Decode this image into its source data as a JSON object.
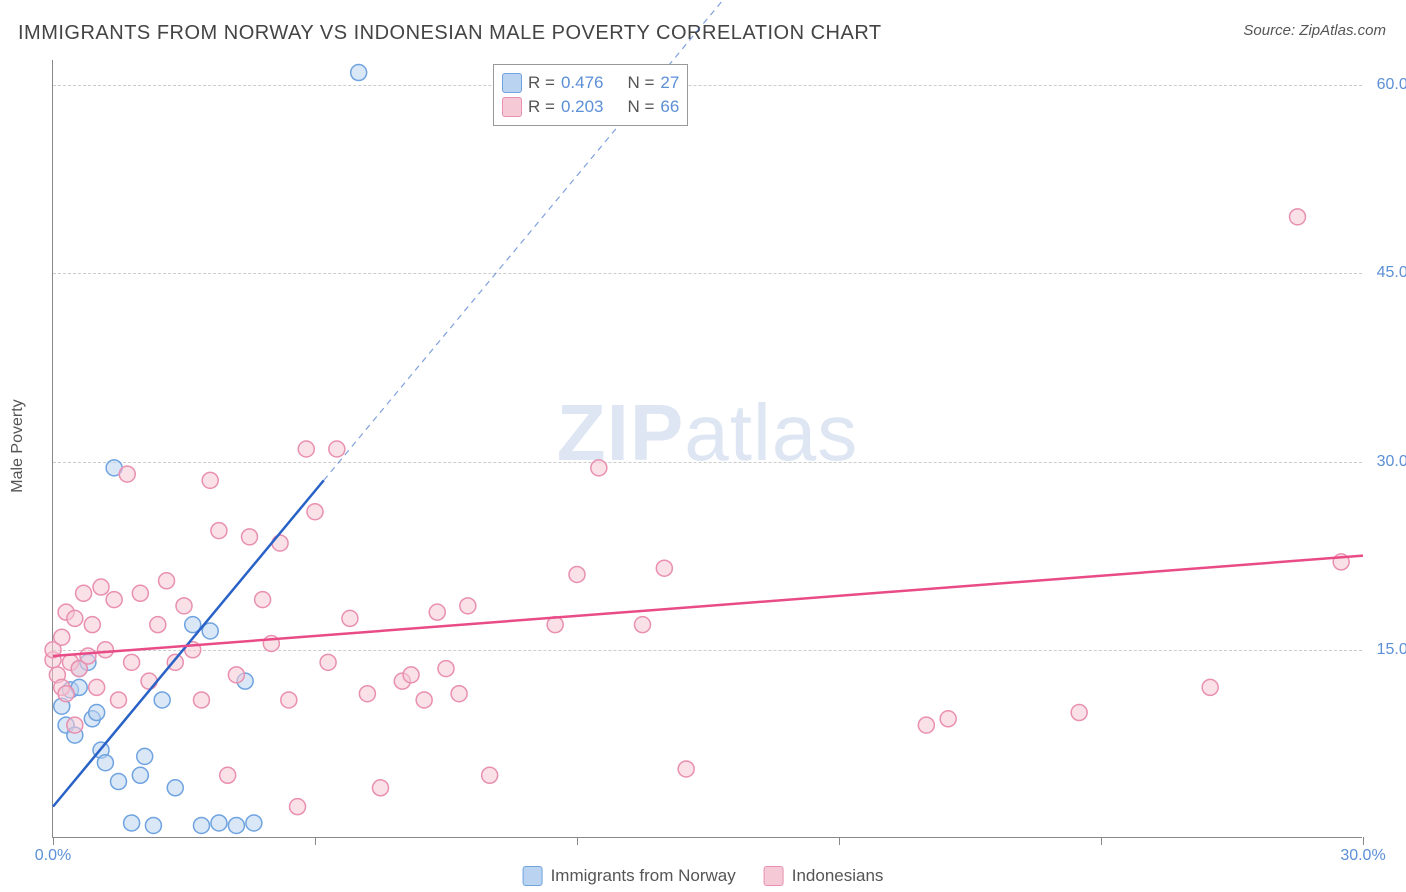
{
  "title": "IMMIGRANTS FROM NORWAY VS INDONESIAN MALE POVERTY CORRELATION CHART",
  "source_label": "Source:",
  "source_value": "ZipAtlas.com",
  "y_axis_title": "Male Poverty",
  "watermark_a": "ZIP",
  "watermark_b": "atlas",
  "chart": {
    "type": "scatter",
    "xlim": [
      0,
      30
    ],
    "ylim": [
      0,
      62
    ],
    "x_ticks": [
      0,
      6,
      12,
      18,
      24,
      30
    ],
    "x_tick_labels": {
      "0": "0.0%",
      "30": "30.0%"
    },
    "y_gridlines": [
      15,
      30,
      45,
      60
    ],
    "y_tick_labels": {
      "15": "15.0%",
      "30": "30.0%",
      "45": "45.0%",
      "60": "60.0%"
    },
    "background_color": "#ffffff",
    "grid_color": "#cccccc",
    "axis_color": "#888888",
    "tick_label_color": "#5b8fd6",
    "point_radius": 8,
    "point_opacity": 0.55,
    "line_width": 2.5,
    "series": [
      {
        "name": "Immigrants from Norway",
        "color_fill": "#b9d3f0",
        "color_stroke": "#6fa3e0",
        "line_color": "#2962c7",
        "R": "0.476",
        "N": "27",
        "points": [
          [
            0.2,
            10.5
          ],
          [
            0.3,
            9.0
          ],
          [
            0.4,
            11.8
          ],
          [
            0.5,
            8.2
          ],
          [
            0.6,
            13.5
          ],
          [
            0.6,
            12.0
          ],
          [
            0.8,
            14.0
          ],
          [
            0.9,
            9.5
          ],
          [
            1.0,
            10.0
          ],
          [
            1.1,
            7.0
          ],
          [
            1.2,
            6.0
          ],
          [
            1.4,
            29.5
          ],
          [
            1.5,
            4.5
          ],
          [
            1.8,
            1.2
          ],
          [
            2.0,
            5.0
          ],
          [
            2.1,
            6.5
          ],
          [
            2.3,
            1.0
          ],
          [
            2.5,
            11.0
          ],
          [
            2.8,
            4.0
          ],
          [
            3.2,
            17.0
          ],
          [
            3.4,
            1.0
          ],
          [
            3.6,
            16.5
          ],
          [
            3.8,
            1.2
          ],
          [
            4.2,
            1.0
          ],
          [
            4.4,
            12.5
          ],
          [
            4.6,
            1.2
          ],
          [
            7.0,
            61.0
          ]
        ],
        "trend": {
          "x1": 0,
          "y1": 2.5,
          "x2": 6.2,
          "y2": 28.5,
          "ext_x2": 18.5,
          "ext_y2": 80
        }
      },
      {
        "name": "Indonesians",
        "color_fill": "#f6c9d6",
        "color_stroke": "#e98fb0",
        "line_color": "#e94b87",
        "R": "0.203",
        "N": "66",
        "points": [
          [
            0.0,
            14.2
          ],
          [
            0.0,
            15.0
          ],
          [
            0.1,
            13.0
          ],
          [
            0.2,
            16.0
          ],
          [
            0.2,
            12.0
          ],
          [
            0.3,
            18.0
          ],
          [
            0.3,
            11.5
          ],
          [
            0.4,
            14.0
          ],
          [
            0.5,
            9.0
          ],
          [
            0.5,
            17.5
          ],
          [
            0.6,
            13.5
          ],
          [
            0.7,
            19.5
          ],
          [
            0.8,
            14.5
          ],
          [
            0.9,
            17.0
          ],
          [
            1.0,
            12.0
          ],
          [
            1.1,
            20.0
          ],
          [
            1.2,
            15.0
          ],
          [
            1.4,
            19.0
          ],
          [
            1.5,
            11.0
          ],
          [
            1.7,
            29.0
          ],
          [
            1.8,
            14.0
          ],
          [
            2.0,
            19.5
          ],
          [
            2.2,
            12.5
          ],
          [
            2.4,
            17.0
          ],
          [
            2.6,
            20.5
          ],
          [
            2.8,
            14.0
          ],
          [
            3.0,
            18.5
          ],
          [
            3.2,
            15.0
          ],
          [
            3.4,
            11.0
          ],
          [
            3.6,
            28.5
          ],
          [
            3.8,
            24.5
          ],
          [
            4.0,
            5.0
          ],
          [
            4.2,
            13.0
          ],
          [
            4.5,
            24.0
          ],
          [
            4.8,
            19.0
          ],
          [
            5.0,
            15.5
          ],
          [
            5.2,
            23.5
          ],
          [
            5.4,
            11.0
          ],
          [
            5.6,
            2.5
          ],
          [
            5.8,
            31.0
          ],
          [
            6.0,
            26.0
          ],
          [
            6.3,
            14.0
          ],
          [
            6.5,
            31.0
          ],
          [
            6.8,
            17.5
          ],
          [
            7.2,
            11.5
          ],
          [
            7.5,
            4.0
          ],
          [
            8.0,
            12.5
          ],
          [
            8.2,
            13.0
          ],
          [
            8.5,
            11.0
          ],
          [
            8.8,
            18.0
          ],
          [
            9.0,
            13.5
          ],
          [
            9.3,
            11.5
          ],
          [
            9.5,
            18.5
          ],
          [
            10.0,
            5.0
          ],
          [
            11.5,
            17.0
          ],
          [
            12.0,
            21.0
          ],
          [
            12.5,
            29.5
          ],
          [
            13.5,
            17.0
          ],
          [
            14.0,
            21.5
          ],
          [
            14.5,
            5.5
          ],
          [
            20.0,
            9.0
          ],
          [
            20.5,
            9.5
          ],
          [
            23.5,
            10.0
          ],
          [
            26.5,
            12.0
          ],
          [
            28.5,
            49.5
          ],
          [
            29.5,
            22.0
          ]
        ],
        "trend": {
          "x1": 0,
          "y1": 14.5,
          "x2": 30,
          "y2": 22.5
        }
      }
    ]
  },
  "top_legend": {
    "r_label": "R =",
    "n_label": "N ="
  },
  "bottom_legend": {
    "series1": "Immigrants from Norway",
    "series2": "Indonesians"
  }
}
